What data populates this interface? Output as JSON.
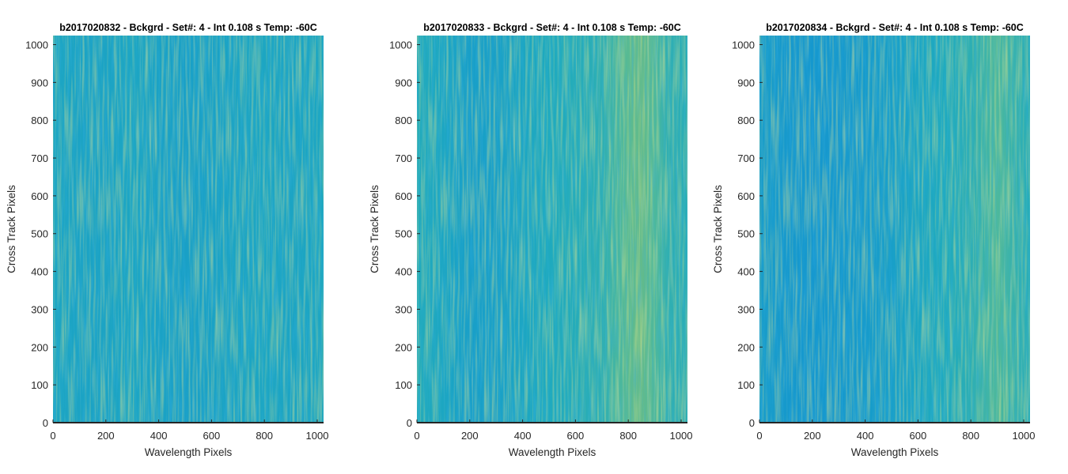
{
  "chart_data": [
    {
      "type": "heatmap",
      "title": "b2017020832 - Bckgrd - Set#: 4 - Int 0.108 s Temp: -60C",
      "xlabel": "Wavelength Pixels",
      "ylabel": "Cross Track Pixels",
      "xlim": [
        0,
        1024
      ],
      "ylim": [
        0,
        1024
      ],
      "xticks": [
        0,
        200,
        400,
        600,
        800,
        1000
      ],
      "yticks": [
        0,
        100,
        200,
        300,
        400,
        500,
        600,
        700,
        800,
        900,
        1000
      ],
      "colormap": "parula",
      "profile_x": [
        0,
        100,
        200,
        300,
        400,
        500,
        600,
        700,
        800,
        900,
        1000,
        1024
      ],
      "profile_level": [
        0.42,
        0.4,
        0.4,
        0.42,
        0.39,
        0.38,
        0.39,
        0.41,
        0.42,
        0.41,
        0.42,
        0.43
      ],
      "grid": false
    },
    {
      "type": "heatmap",
      "title": "b2017020833 - Bckgrd - Set#: 4 - Int 0.108 s Temp: -60C",
      "xlabel": "Wavelength Pixels",
      "ylabel": "Cross Track Pixels",
      "xlim": [
        0,
        1024
      ],
      "ylim": [
        0,
        1024
      ],
      "xticks": [
        0,
        200,
        400,
        600,
        800,
        1000
      ],
      "yticks": [
        0,
        100,
        200,
        300,
        400,
        500,
        600,
        700,
        800,
        900,
        1000
      ],
      "colormap": "parula",
      "profile_x": [
        0,
        100,
        200,
        300,
        400,
        500,
        600,
        700,
        750,
        800,
        850,
        900,
        950,
        1024
      ],
      "profile_level": [
        0.46,
        0.42,
        0.37,
        0.38,
        0.42,
        0.45,
        0.47,
        0.49,
        0.55,
        0.61,
        0.63,
        0.58,
        0.5,
        0.48
      ],
      "grid": false
    },
    {
      "type": "heatmap",
      "title": "b2017020834 - Bckgrd - Set#: 4 - Int 0.108 s Temp: -60C",
      "xlabel": "Wavelength Pixels",
      "ylabel": "Cross Track Pixels",
      "xlim": [
        0,
        1024
      ],
      "ylim": [
        0,
        1024
      ],
      "xticks": [
        0,
        200,
        400,
        600,
        800,
        1000
      ],
      "yticks": [
        0,
        100,
        200,
        300,
        400,
        500,
        600,
        700,
        800,
        900,
        1000
      ],
      "colormap": "parula",
      "profile_x": [
        0,
        100,
        200,
        300,
        400,
        500,
        600,
        700,
        800,
        850,
        900,
        950,
        1024
      ],
      "profile_level": [
        0.36,
        0.33,
        0.32,
        0.33,
        0.34,
        0.37,
        0.42,
        0.45,
        0.49,
        0.53,
        0.58,
        0.53,
        0.47
      ],
      "grid": false
    }
  ]
}
